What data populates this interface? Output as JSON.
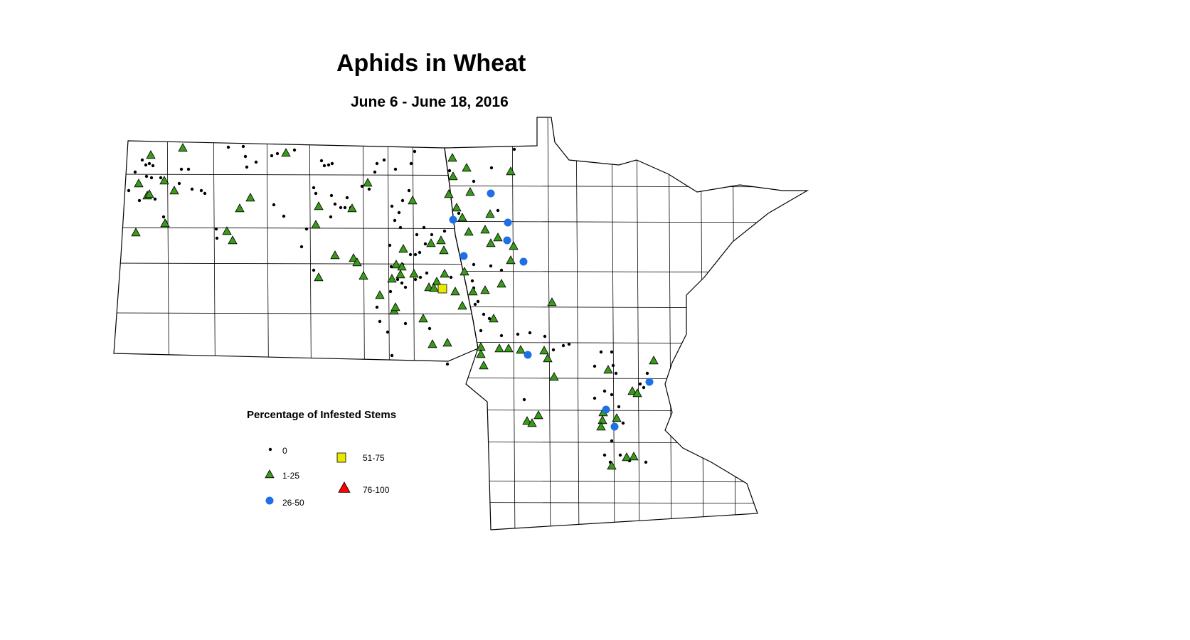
{
  "title": "Aphids in Wheat",
  "subtitle": "June 6 - June 18, 2016",
  "legend": {
    "title": "Percentage of Infested Stems",
    "items": [
      {
        "label": "0",
        "symbol": "dot",
        "color": "#000000"
      },
      {
        "label": "1-25",
        "symbol": "triangle",
        "color": "#3a9a1a"
      },
      {
        "label": "26-50",
        "symbol": "circle",
        "color": "#1f6fe6"
      },
      {
        "label": "51-75",
        "symbol": "square",
        "color": "#e8e800"
      },
      {
        "label": "76-100",
        "symbol": "triangle",
        "color": "#ff0000"
      }
    ]
  }
}
